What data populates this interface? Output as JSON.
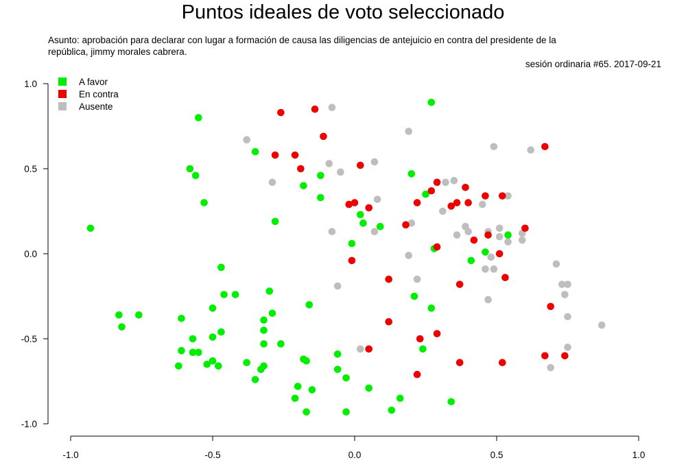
{
  "title": "Puntos ideales de voto seleccionado",
  "subject": "Asunto: aprobación para declarar con lugar a formación de causa las diligencias de antejuicio en contra del presidente de la república, jimmy morales cabrera.",
  "session": "sesión ordinaria #65. 2017-09-21",
  "chart_data": {
    "type": "scatter",
    "title": "Puntos ideales de voto seleccionado",
    "xlim": [
      -1.0,
      1.0
    ],
    "ylim": [
      -1.0,
      1.0
    ],
    "x_ticks": [
      "-1.0",
      "-0.5",
      "0.0",
      "0.5",
      "1.0"
    ],
    "y_ticks": [
      "1.0",
      "0.5",
      "0.0",
      "-0.5",
      "-1.0"
    ],
    "legend_position": "top-left",
    "grid": false,
    "series": [
      {
        "name": "A favor",
        "color": "#00ee00",
        "points": [
          [
            -0.93,
            0.15
          ],
          [
            -0.83,
            -0.36
          ],
          [
            -0.82,
            -0.43
          ],
          [
            -0.76,
            -0.36
          ],
          [
            -0.62,
            -0.66
          ],
          [
            -0.61,
            -0.38
          ],
          [
            -0.61,
            -0.57
          ],
          [
            -0.58,
            0.5
          ],
          [
            -0.57,
            -0.5
          ],
          [
            -0.57,
            -0.58
          ],
          [
            -0.55,
            -0.58
          ],
          [
            -0.56,
            0.46
          ],
          [
            -0.55,
            0.8
          ],
          [
            -0.53,
            0.3
          ],
          [
            -0.52,
            -0.65
          ],
          [
            -0.5,
            -0.49
          ],
          [
            -0.5,
            -0.32
          ],
          [
            -0.5,
            -0.63
          ],
          [
            -0.48,
            -0.66
          ],
          [
            -0.47,
            -0.46
          ],
          [
            -0.47,
            -0.08
          ],
          [
            -0.46,
            -0.24
          ],
          [
            -0.42,
            -0.24
          ],
          [
            -0.38,
            -0.64
          ],
          [
            -0.35,
            0.6
          ],
          [
            -0.35,
            -0.74
          ],
          [
            -0.33,
            -0.68
          ],
          [
            -0.32,
            -0.45
          ],
          [
            -0.32,
            -0.53
          ],
          [
            -0.32,
            -0.66
          ],
          [
            -0.32,
            -0.39
          ],
          [
            -0.3,
            -0.22
          ],
          [
            -0.29,
            -0.35
          ],
          [
            -0.28,
            0.19
          ],
          [
            -0.26,
            -0.53
          ],
          [
            -0.21,
            -0.85
          ],
          [
            -0.2,
            -0.78
          ],
          [
            -0.18,
            -0.62
          ],
          [
            -0.18,
            0.4
          ],
          [
            -0.17,
            -0.63
          ],
          [
            -0.17,
            -0.93
          ],
          [
            -0.16,
            -0.3
          ],
          [
            -0.15,
            -0.8
          ],
          [
            -0.12,
            0.46
          ],
          [
            -0.12,
            0.33
          ],
          [
            -0.06,
            -0.59
          ],
          [
            -0.06,
            -0.68
          ],
          [
            -0.03,
            -0.73
          ],
          [
            -0.03,
            -0.93
          ],
          [
            -0.01,
            0.06
          ],
          [
            0.02,
            0.23
          ],
          [
            0.03,
            0.18
          ],
          [
            0.05,
            -0.79
          ],
          [
            0.09,
            0.16
          ],
          [
            0.13,
            -0.92
          ],
          [
            0.16,
            -0.85
          ],
          [
            0.2,
            0.47
          ],
          [
            0.21,
            -0.25
          ],
          [
            0.24,
            -0.56
          ],
          [
            0.25,
            0.35
          ],
          [
            0.27,
            0.89
          ],
          [
            0.27,
            -0.32
          ],
          [
            0.28,
            0.03
          ],
          [
            0.34,
            -0.87
          ],
          [
            0.41,
            -0.04
          ],
          [
            0.46,
            0.01
          ],
          [
            0.54,
            0.11
          ]
        ]
      },
      {
        "name": "En contra",
        "color": "#ee0000",
        "points": [
          [
            -0.28,
            0.58
          ],
          [
            -0.26,
            0.83
          ],
          [
            -0.21,
            0.58
          ],
          [
            -0.19,
            0.5
          ],
          [
            -0.14,
            0.85
          ],
          [
            -0.11,
            0.69
          ],
          [
            -0.02,
            0.29
          ],
          [
            0.0,
            0.3
          ],
          [
            -0.01,
            -0.04
          ],
          [
            0.02,
            0.52
          ],
          [
            0.05,
            0.27
          ],
          [
            0.05,
            -0.56
          ],
          [
            0.12,
            -0.4
          ],
          [
            0.12,
            -0.15
          ],
          [
            0.18,
            0.17
          ],
          [
            0.22,
            0.3
          ],
          [
            0.22,
            -0.71
          ],
          [
            0.23,
            -0.5
          ],
          [
            0.27,
            0.37
          ],
          [
            0.29,
            0.42
          ],
          [
            0.29,
            -0.47
          ],
          [
            0.29,
            0.04
          ],
          [
            0.34,
            0.28
          ],
          [
            0.36,
            0.3
          ],
          [
            0.37,
            -0.64
          ],
          [
            0.37,
            -0.18
          ],
          [
            0.39,
            0.39
          ],
          [
            0.4,
            0.3
          ],
          [
            0.42,
            0.08
          ],
          [
            0.46,
            0.34
          ],
          [
            0.47,
            0.11
          ],
          [
            0.51,
            0.0
          ],
          [
            0.52,
            0.34
          ],
          [
            0.52,
            -0.64
          ],
          [
            0.53,
            -0.14
          ],
          [
            0.6,
            0.15
          ],
          [
            0.67,
            -0.6
          ],
          [
            0.67,
            0.63
          ],
          [
            0.69,
            -0.31
          ],
          [
            0.74,
            -0.6
          ]
        ]
      },
      {
        "name": "Ausente",
        "color": "#bebebe",
        "points": [
          [
            -0.38,
            0.67
          ],
          [
            -0.29,
            0.42
          ],
          [
            -0.09,
            0.53
          ],
          [
            -0.08,
            0.13
          ],
          [
            -0.08,
            0.86
          ],
          [
            -0.06,
            -0.19
          ],
          [
            -0.05,
            0.48
          ],
          [
            0.02,
            -0.56
          ],
          [
            0.07,
            0.13
          ],
          [
            0.07,
            0.54
          ],
          [
            0.08,
            0.32
          ],
          [
            0.19,
            -0.01
          ],
          [
            0.19,
            0.72
          ],
          [
            0.2,
            0.18
          ],
          [
            0.22,
            -0.15
          ],
          [
            0.31,
            0.25
          ],
          [
            0.32,
            0.42
          ],
          [
            0.35,
            0.43
          ],
          [
            0.36,
            0.11
          ],
          [
            0.39,
            0.16
          ],
          [
            0.4,
            0.13
          ],
          [
            0.45,
            0.29
          ],
          [
            0.46,
            -0.09
          ],
          [
            0.47,
            0.13
          ],
          [
            0.47,
            -0.27
          ],
          [
            0.48,
            -0.02
          ],
          [
            0.49,
            0.63
          ],
          [
            0.49,
            -0.09
          ],
          [
            0.51,
            0.1
          ],
          [
            0.51,
            0.15
          ],
          [
            0.54,
            0.34
          ],
          [
            0.54,
            0.07
          ],
          [
            0.62,
            0.61
          ],
          [
            0.59,
            0.08
          ],
          [
            0.59,
            0.12
          ],
          [
            0.69,
            -0.67
          ],
          [
            0.71,
            -0.06
          ],
          [
            0.73,
            -0.18
          ],
          [
            0.74,
            -0.24
          ],
          [
            0.75,
            -0.18
          ],
          [
            0.75,
            -0.37
          ],
          [
            0.75,
            -0.55
          ],
          [
            0.87,
            -0.42
          ]
        ]
      }
    ]
  }
}
